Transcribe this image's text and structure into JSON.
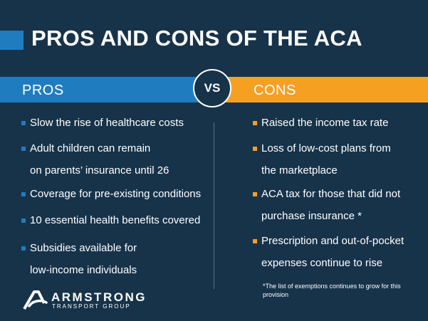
{
  "title": "PROS AND CONS OF THE ACA",
  "pros_label": "PROS",
  "vs_label": "VS",
  "cons_label": "CONS",
  "pros": [
    {
      "lines": [
        "Slow the rise of healthcare costs"
      ]
    },
    {
      "lines": [
        "Adult children can remain",
        "on parents’ insurance until 26"
      ]
    },
    {
      "lines": [
        "Coverage for pre-existing conditions"
      ]
    },
    {
      "lines": [
        "10 essential health benefits covered"
      ]
    },
    {
      "lines": [
        "Subsidies available for",
        "low-income individuals"
      ]
    }
  ],
  "cons": [
    {
      "lines": [
        "Raised the income tax rate"
      ]
    },
    {
      "lines": [
        "Loss of low-cost plans from",
        "the marketplace"
      ]
    },
    {
      "lines": [
        "ACA tax for those that did not",
        "purchase insurance *"
      ]
    },
    {
      "lines": [
        "Prescription and out-of-pocket",
        "expenses continue to rise"
      ]
    }
  ],
  "footnote": "*The list of exemptions continues to grow for this provision",
  "logo": {
    "name": "ARMSTRONG",
    "tagline": "TRANSPORT GROUP",
    "icon": "armstrong-logo-icon"
  },
  "colors": {
    "background": "#17334a",
    "pros_accent": "#1f7dbf",
    "cons_accent": "#f6a022",
    "text": "#ffffff"
  }
}
